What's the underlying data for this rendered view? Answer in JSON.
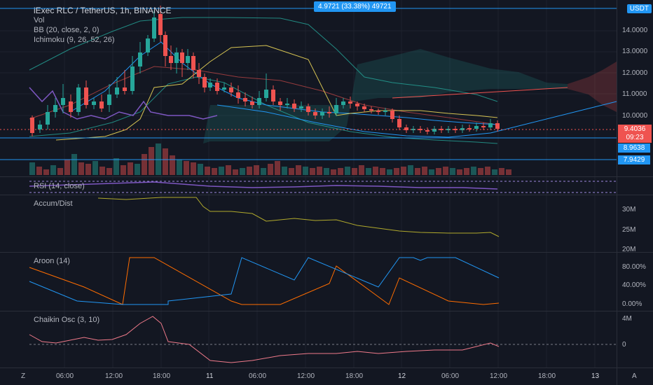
{
  "header": {
    "symbol": "iExec RLC / TetherUS, 1h, BINANCE",
    "vol": "Vol",
    "bb": "BB (20, close, 2, 0)",
    "ichimoku": "Ichimoku (9, 26, 52, 26)",
    "measure_badge": "4.9721 (33.38%) 49721",
    "currency": "USDT"
  },
  "prices": {
    "current": "9.4036",
    "countdown": "09:23",
    "level1": "8.9638",
    "level2": "7.9429"
  },
  "price_axis": [
    "14.0000",
    "13.0000",
    "12.0000",
    "11.0000",
    "10.0000"
  ],
  "panes": {
    "rsi": "RSI (14, close)",
    "accum": "Accum/Dist",
    "accum_axis": [
      "30M",
      "25M",
      "20M"
    ],
    "aroon": "Aroon (14)",
    "aroon_axis": [
      "80.00%",
      "40.00%",
      "0.00%"
    ],
    "chaikin": "Chaikin Osc (3, 10)",
    "chaikin_axis": [
      "4M",
      "0"
    ]
  },
  "time_axis": [
    "06:00",
    "12:00",
    "18:00",
    "11",
    "06:00",
    "12:00",
    "18:00",
    "12",
    "06:00",
    "12:00",
    "18:00",
    "13"
  ],
  "corner": {
    "left": "Z",
    "right": "A"
  },
  "colors": {
    "up": "#26a69a",
    "down": "#ef5350",
    "blue": "#2196f3",
    "bg": "#131722"
  }
}
